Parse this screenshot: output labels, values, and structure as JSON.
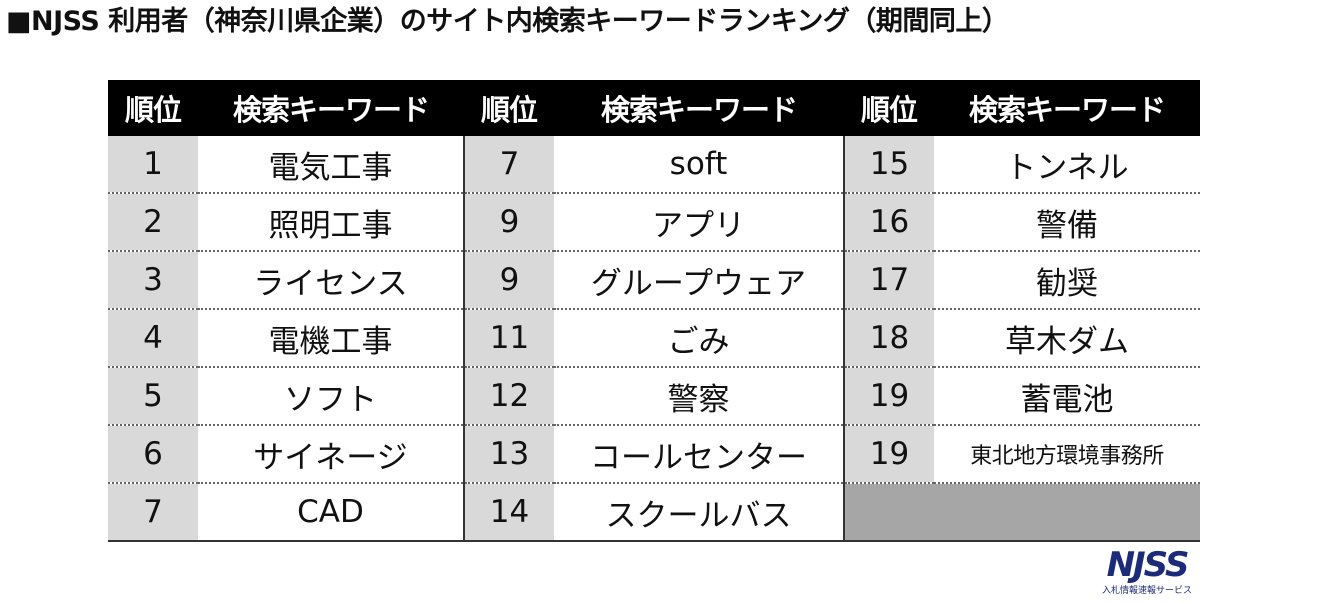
{
  "title": "■NJSS 利用者（神奈川県企業）のサイト内検索キーワードランキング（期間同上）",
  "table": {
    "headers": [
      "順位",
      "検索キーワード",
      "順位",
      "検索キーワード",
      "順位",
      "検索キーワード"
    ],
    "rows": [
      [
        {
          "rank": "1",
          "keyword": "電気工事"
        },
        {
          "rank": "7",
          "keyword": "soft"
        },
        {
          "rank": "15",
          "keyword": "トンネル"
        }
      ],
      [
        {
          "rank": "2",
          "keyword": "照明工事"
        },
        {
          "rank": "9",
          "keyword": "アプリ"
        },
        {
          "rank": "16",
          "keyword": "警備"
        }
      ],
      [
        {
          "rank": "3",
          "keyword": "ライセンス"
        },
        {
          "rank": "9",
          "keyword": "グループウェア"
        },
        {
          "rank": "17",
          "keyword": "勧奨"
        }
      ],
      [
        {
          "rank": "4",
          "keyword": "電機工事"
        },
        {
          "rank": "11",
          "keyword": "ごみ"
        },
        {
          "rank": "18",
          "keyword": "草木ダム"
        }
      ],
      [
        {
          "rank": "5",
          "keyword": "ソフト"
        },
        {
          "rank": "12",
          "keyword": "警察"
        },
        {
          "rank": "19",
          "keyword": "蓄電池"
        }
      ],
      [
        {
          "rank": "6",
          "keyword": "サイネージ"
        },
        {
          "rank": "13",
          "keyword": "コールセンター"
        },
        {
          "rank": "19",
          "keyword": "東北地方環境事務所"
        }
      ],
      [
        {
          "rank": "7",
          "keyword": "CAD"
        },
        {
          "rank": "14",
          "keyword": "スクールバス"
        },
        {
          "rank": "",
          "keyword": ""
        }
      ]
    ]
  },
  "logo": {
    "text": "NJSS",
    "subtitle": "入札情報速報サービス"
  }
}
